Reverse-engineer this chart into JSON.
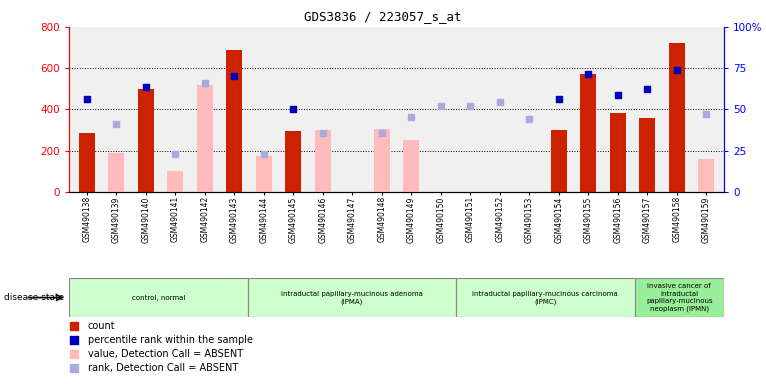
{
  "title": "GDS3836 / 223057_s_at",
  "samples": [
    "GSM490138",
    "GSM490139",
    "GSM490140",
    "GSM490141",
    "GSM490142",
    "GSM490143",
    "GSM490144",
    "GSM490145",
    "GSM490146",
    "GSM490147",
    "GSM490148",
    "GSM490149",
    "GSM490150",
    "GSM490151",
    "GSM490152",
    "GSM490153",
    "GSM490154",
    "GSM490155",
    "GSM490156",
    "GSM490157",
    "GSM490158",
    "GSM490159"
  ],
  "count_present": [
    285,
    null,
    500,
    null,
    null,
    690,
    null,
    295,
    null,
    null,
    null,
    null,
    null,
    null,
    null,
    null,
    300,
    570,
    385,
    360,
    720,
    null
  ],
  "count_absent": [
    null,
    190,
    null,
    100,
    520,
    null,
    175,
    null,
    300,
    null,
    305,
    250,
    null,
    null,
    null,
    null,
    null,
    null,
    null,
    null,
    null,
    160
  ],
  "rank_present": [
    450,
    null,
    510,
    null,
    null,
    560,
    null,
    400,
    null,
    null,
    null,
    null,
    null,
    null,
    null,
    null,
    450,
    570,
    470,
    500,
    590,
    null
  ],
  "rank_absent": [
    null,
    330,
    null,
    185,
    530,
    null,
    185,
    null,
    285,
    null,
    285,
    365,
    415,
    415,
    435,
    355,
    null,
    null,
    null,
    null,
    null,
    380
  ],
  "ylim_left": [
    0,
    800
  ],
  "bar_color_red": "#cc2200",
  "bar_color_pink": "#ffbbbb",
  "dot_color_blue": "#0000bb",
  "dot_color_lightblue": "#aaaadd",
  "gridlines": [
    200,
    400,
    600
  ],
  "group_boundaries": [
    0,
    6,
    13,
    19,
    22
  ],
  "group_labels": [
    "control, normal",
    "intraductal papillary-mucinous adenoma\n(IPMA)",
    "intraductal papillary-mucinous carcinoma\n(IPMC)",
    "invasive cancer of\nintraductal\npapillary-mucinous\nneoplasm (IPMN)"
  ],
  "group_colors": [
    "#ccffcc",
    "#ccffcc",
    "#ccffcc",
    "#99ee99"
  ],
  "legend_colors": [
    "#cc2200",
    "#0000bb",
    "#ffbbbb",
    "#aaaadd"
  ],
  "legend_labels": [
    "count",
    "percentile rank within the sample",
    "value, Detection Call = ABSENT",
    "rank, Detection Call = ABSENT"
  ],
  "plot_bg": "#f0f0f0",
  "xtick_bg": "#cccccc"
}
